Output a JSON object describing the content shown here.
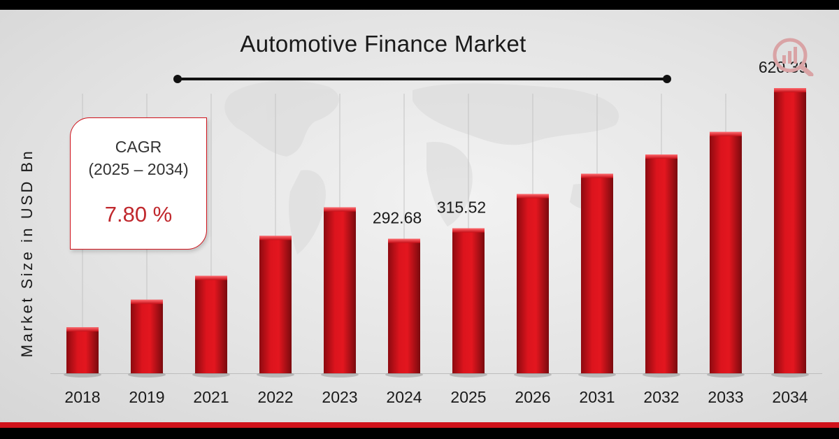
{
  "chart_data": {
    "type": "bar",
    "title": "Automotive Finance Market",
    "ylabel": "Market Size in USD Bn",
    "xlabel": "",
    "categories": [
      "2018",
      "2019",
      "2021",
      "2022",
      "2023",
      "2024",
      "2025",
      "2026",
      "2031",
      "2032",
      "2033",
      "2034"
    ],
    "values": [
      100,
      160,
      212,
      299,
      361,
      292.68,
      315.52,
      390,
      434,
      476,
      525,
      620.39
    ],
    "data_labels": [
      {
        "category": "2024",
        "text": "292.68"
      },
      {
        "category": "2025",
        "text": "315.52"
      },
      {
        "category": "2034",
        "text": "620.39"
      }
    ],
    "ylim": [
      0,
      660
    ],
    "grid": "vertical",
    "legend": "none",
    "bar_color": "#d0121b"
  },
  "cagr": {
    "title": "CAGR",
    "period": "(2025 – 2034)",
    "value": "7.80 %"
  },
  "colors": {
    "accent": "#d0121b",
    "background": "#e6e6e6"
  },
  "logo": {
    "icon": "bar-chart-magnifier-icon"
  }
}
